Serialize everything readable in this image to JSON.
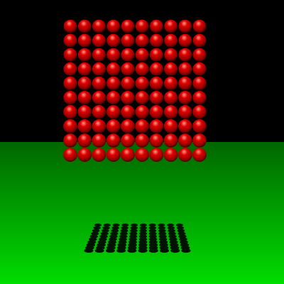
{
  "scene": {
    "sky_color": "#000000",
    "floor_color_near": "#00dd00",
    "floor_color_far": "#006600",
    "sphere_color_highlight": "#ff9a8a",
    "sphere_color_main": "#e00000",
    "sphere_color_dark": "#400000",
    "shadow_color": "#001200",
    "sphere_grid": {
      "rows": 10,
      "cols": 10
    }
  }
}
